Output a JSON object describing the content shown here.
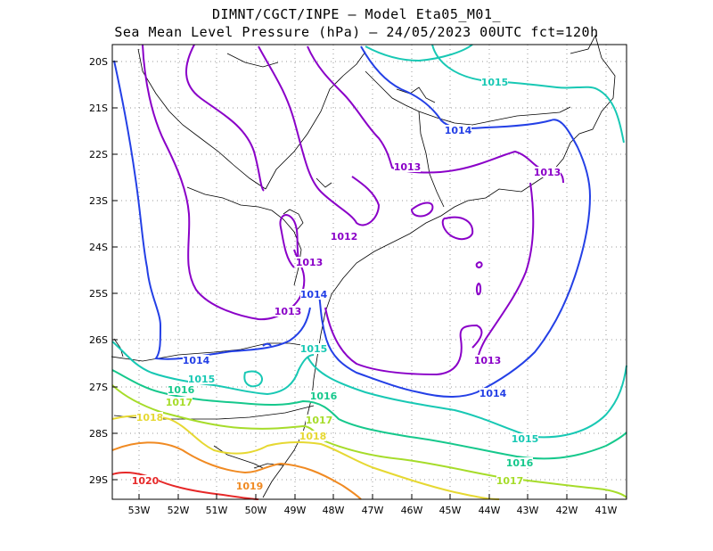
{
  "title": {
    "line1": "DIMNT/CGCT/INPE –   Model Eta05_M01_",
    "line2": "Sea Mean Level Pressure (hPa) – 24/05/2023 00UTC fct=120h"
  },
  "axes": {
    "lat_labels": [
      "20S",
      "21S",
      "22S",
      "23S",
      "24S",
      "25S",
      "26S",
      "27S",
      "28S",
      "29S"
    ],
    "lon_labels": [
      "53W",
      "52W",
      "51W",
      "50W",
      "49W",
      "48W",
      "47W",
      "46W",
      "45W",
      "44W",
      "43W",
      "42W",
      "41W"
    ]
  },
  "colors": {
    "c1012": "#8a00c8",
    "c1013": "#8a00c8",
    "c1014": "#2440e6",
    "c1015": "#18c8b4",
    "c1016": "#16c88c",
    "c1017": "#a6dc2a",
    "c1018": "#e6d832",
    "c1019": "#f08a22",
    "c1020": "#e62828",
    "coast": "#000000",
    "grid": "#9a9a9a"
  },
  "contour_labels": [
    {
      "text": "1012",
      "color": "#8a00c8"
    },
    {
      "text": "1013",
      "color": "#8a00c8"
    },
    {
      "text": "1013",
      "color": "#8a00c8"
    },
    {
      "text": "1013",
      "color": "#8a00c8"
    },
    {
      "text": "1013",
      "color": "#8a00c8"
    },
    {
      "text": "1013",
      "color": "#8a00c8"
    },
    {
      "text": "1014",
      "color": "#2440e6"
    },
    {
      "text": "1014",
      "color": "#2440e6"
    },
    {
      "text": "1014",
      "color": "#2440e6"
    },
    {
      "text": "1014",
      "color": "#2440e6"
    },
    {
      "text": "1015",
      "color": "#18c8b4"
    },
    {
      "text": "1015",
      "color": "#18c8b4"
    },
    {
      "text": "1015",
      "color": "#18c8b4"
    },
    {
      "text": "1015",
      "color": "#18c8b4"
    },
    {
      "text": "1016",
      "color": "#16c88c"
    },
    {
      "text": "1016",
      "color": "#16c88c"
    },
    {
      "text": "1016",
      "color": "#16c88c"
    },
    {
      "text": "1017",
      "color": "#a6dc2a"
    },
    {
      "text": "1017",
      "color": "#a6dc2a"
    },
    {
      "text": "1017",
      "color": "#a6dc2a"
    },
    {
      "text": "1018",
      "color": "#e6d832"
    },
    {
      "text": "1018",
      "color": "#e6d832"
    },
    {
      "text": "1019",
      "color": "#f08a22"
    },
    {
      "text": "1020",
      "color": "#e62828"
    }
  ]
}
